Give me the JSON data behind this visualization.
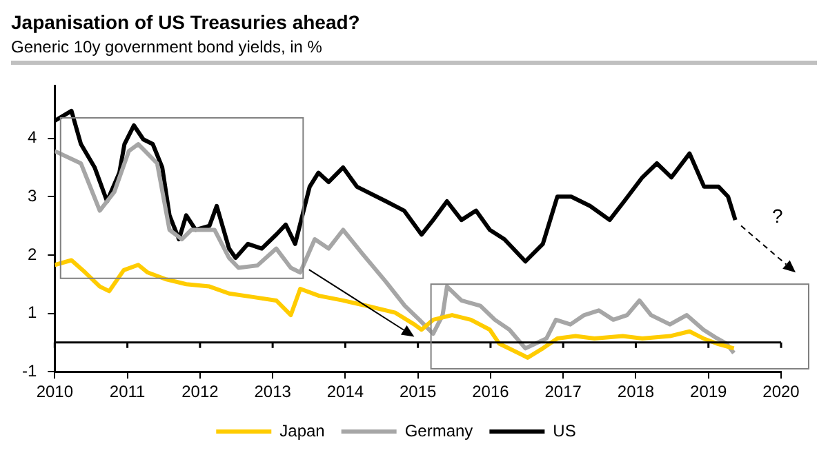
{
  "chart_data": {
    "type": "line",
    "title": "Japanisation of US Treasuries ahead?",
    "subtitle": "Generic 10y government bond yields, in %",
    "xlim": [
      2010,
      2020
    ],
    "xticks": [
      2010,
      2011,
      2012,
      2013,
      2014,
      2015,
      2016,
      2017,
      2018,
      2019,
      2020
    ],
    "ylim": [
      -0.5,
      4.4
    ],
    "yticks": [
      {
        "value": 3.5,
        "label": "4"
      },
      {
        "value": 2.5,
        "label": "3"
      },
      {
        "value": 1.5,
        "label": "2"
      },
      {
        "value": 0.5,
        "label": "1"
      },
      {
        "value": -0.5,
        "label": "-1"
      }
    ],
    "ref_lines": [
      {
        "axis": "y",
        "value": 0,
        "color": "#000000"
      }
    ],
    "annotations": [
      "?"
    ],
    "legend": "bottom",
    "grid": false,
    "marker": "none",
    "line_style": "solid",
    "series": [
      {
        "name": "Japan",
        "color": "#ffcc00",
        "x": [
          2010.0,
          2010.23,
          2010.42,
          2010.62,
          2010.75,
          2010.95,
          2011.15,
          2011.28,
          2011.54,
          2011.81,
          2012.13,
          2012.4,
          2012.73,
          2013.05,
          2013.25,
          2013.38,
          2013.64,
          2013.97,
          2014.29,
          2014.69,
          2014.95,
          2015.05,
          2015.21,
          2015.47,
          2015.73,
          2015.99,
          2016.12,
          2016.45,
          2016.51,
          2016.72,
          2016.92,
          2017.17,
          2017.43,
          2017.82,
          2018.09,
          2018.47,
          2018.74,
          2018.93,
          2019.12,
          2019.35
        ],
        "values": [
          1.33,
          1.41,
          1.2,
          0.96,
          0.88,
          1.24,
          1.33,
          1.2,
          1.08,
          1.0,
          0.96,
          0.84,
          0.78,
          0.72,
          0.47,
          0.92,
          0.8,
          0.72,
          0.63,
          0.51,
          0.31,
          0.22,
          0.39,
          0.47,
          0.39,
          0.22,
          -0.02,
          -0.22,
          -0.26,
          -0.1,
          0.07,
          0.11,
          0.07,
          0.11,
          0.07,
          0.11,
          0.19,
          0.07,
          -0.02,
          -0.1
        ]
      },
      {
        "name": "Germany",
        "color": "#a6a6a6",
        "x": [
          2010.0,
          2010.36,
          2010.62,
          2010.82,
          2011.02,
          2011.15,
          2011.41,
          2011.58,
          2011.75,
          2011.88,
          2012.2,
          2012.4,
          2012.53,
          2012.79,
          2013.05,
          2013.25,
          2013.38,
          2013.58,
          2013.77,
          2013.97,
          2014.23,
          2014.56,
          2014.82,
          2015.02,
          2015.21,
          2015.34,
          2015.4,
          2015.6,
          2015.86,
          2016.06,
          2016.26,
          2016.48,
          2016.77,
          2016.9,
          2017.1,
          2017.29,
          2017.49,
          2017.69,
          2017.88,
          2018.05,
          2018.21,
          2018.47,
          2018.7,
          2018.93,
          2019.12,
          2019.25,
          2019.35
        ],
        "values": [
          3.28,
          3.07,
          2.26,
          2.58,
          3.28,
          3.4,
          3.07,
          1.93,
          1.77,
          1.93,
          1.93,
          1.45,
          1.28,
          1.32,
          1.61,
          1.28,
          1.2,
          1.77,
          1.61,
          1.93,
          1.53,
          1.04,
          0.63,
          0.39,
          0.15,
          0.47,
          0.96,
          0.72,
          0.63,
          0.39,
          0.22,
          -0.1,
          0.07,
          0.39,
          0.31,
          0.47,
          0.55,
          0.39,
          0.47,
          0.72,
          0.47,
          0.31,
          0.47,
          0.22,
          0.07,
          -0.02,
          -0.18
        ]
      },
      {
        "name": "US",
        "color": "#000000",
        "x": [
          2010.0,
          2010.23,
          2010.36,
          2010.55,
          2010.72,
          2010.89,
          2010.96,
          2011.09,
          2011.22,
          2011.35,
          2011.48,
          2011.58,
          2011.71,
          2011.81,
          2011.94,
          2012.13,
          2012.23,
          2012.4,
          2012.49,
          2012.66,
          2012.85,
          2013.05,
          2013.18,
          2013.31,
          2013.41,
          2013.51,
          2013.63,
          2013.77,
          2013.97,
          2014.16,
          2014.56,
          2014.81,
          2015.05,
          2015.21,
          2015.4,
          2015.6,
          2015.8,
          2015.99,
          2016.19,
          2016.48,
          2016.72,
          2016.92,
          2017.11,
          2017.37,
          2017.64,
          2017.84,
          2018.09,
          2018.29,
          2018.49,
          2018.74,
          2018.94,
          2019.14,
          2019.27,
          2019.37
        ],
        "values": [
          3.8,
          3.97,
          3.4,
          3.0,
          2.42,
          2.91,
          3.4,
          3.72,
          3.48,
          3.4,
          3.0,
          2.18,
          1.77,
          2.18,
          1.93,
          2.0,
          2.34,
          1.61,
          1.45,
          1.69,
          1.61,
          1.85,
          2.02,
          1.69,
          2.18,
          2.67,
          2.91,
          2.75,
          3.0,
          2.67,
          2.42,
          2.26,
          1.85,
          2.1,
          2.42,
          2.1,
          2.26,
          1.93,
          1.77,
          1.39,
          1.69,
          2.5,
          2.5,
          2.34,
          2.1,
          2.42,
          2.83,
          3.07,
          2.83,
          3.24,
          2.67,
          2.67,
          2.5,
          2.1
        ]
      }
    ]
  }
}
